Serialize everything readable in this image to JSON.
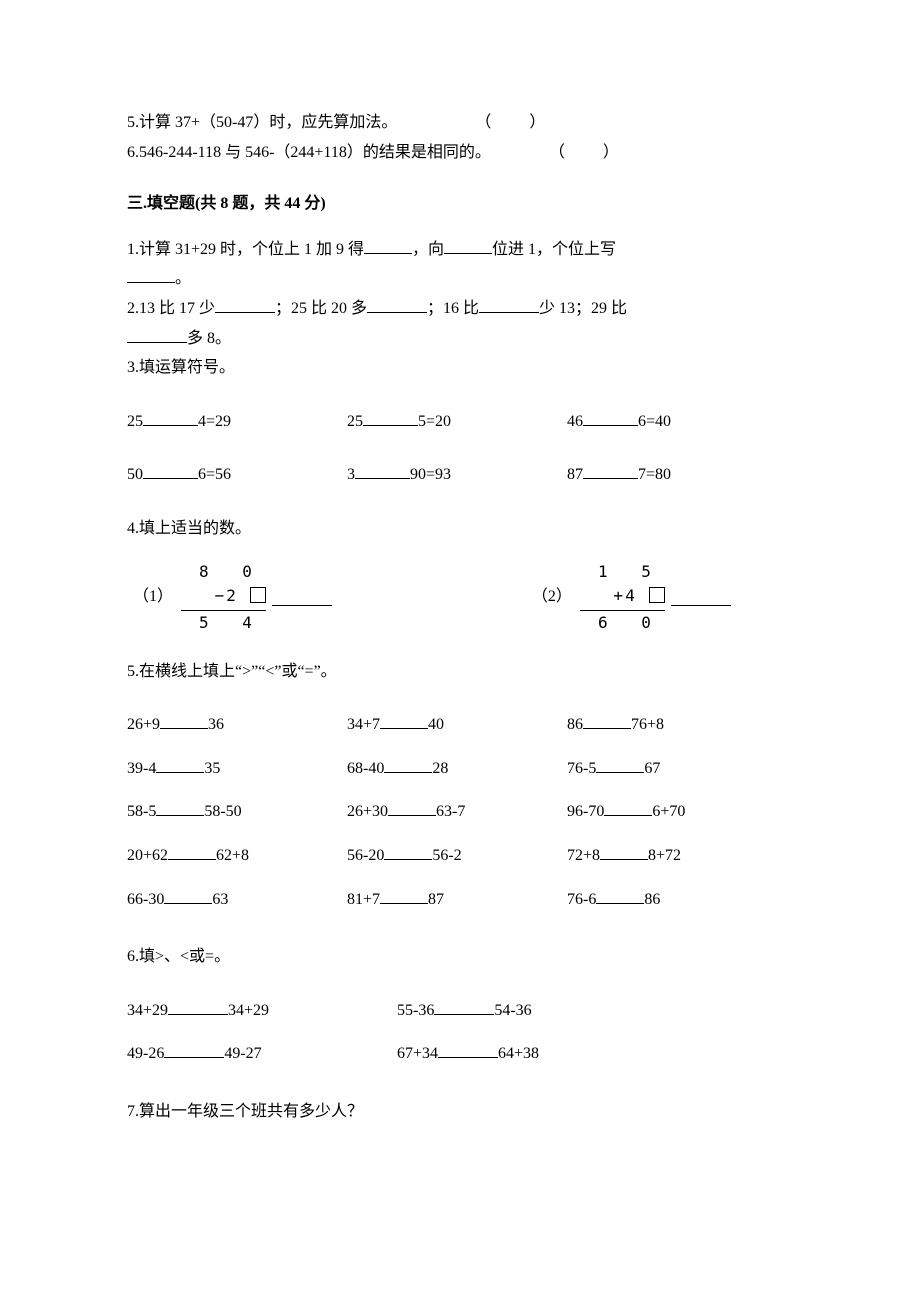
{
  "tf": {
    "q5": "5.计算 37+（50-47）时，应先算加法。",
    "q5_paren": "（　　）",
    "q6": "6.546-244-118 与 546-（244+118）的结果是相同的。",
    "q6_paren": "（　　）"
  },
  "section3_heading": "三.填空题(共 8 题，共 44 分)",
  "q1": {
    "a": "1.计算 31+29 时，个位上 1 加 9 得",
    "b": "，向",
    "c": "位进 1，个位上写",
    "d": "。"
  },
  "q2": {
    "a": "2.13 比 17 少",
    "b": "；25 比 20 多",
    "c": "；16 比",
    "d": "少 13；29 比",
    "e": "多 8。"
  },
  "q3_title": "3.填运算符号。",
  "q3_rows": [
    [
      "25",
      "4=29",
      "25",
      "5=20",
      "46",
      "6=40"
    ],
    [
      "50",
      "6=56",
      "3",
      "90=93",
      "87",
      "7=80"
    ]
  ],
  "q4_title": "4.填上适当的数。",
  "q4": {
    "p1_label": "（1）",
    "p1_top": "8  0",
    "p1_op": "−",
    "p1_mid_digit": "2",
    "p1_bot": "5  4",
    "p2_label": "（2）",
    "p2_top": "1  5",
    "p2_op": "+",
    "p2_mid_digit": "4",
    "p2_bot": "6  0"
  },
  "q5_title": "5.在横线上填上“>”“<”或“=”。",
  "q5_rows": [
    [
      "26+9",
      "36",
      "34+7",
      "40",
      "86",
      "76+8"
    ],
    [
      "39-4",
      "35",
      "68-40",
      "28",
      "76-5",
      "67"
    ],
    [
      "58-5",
      "58-50",
      "26+30",
      "63-7",
      "96-70",
      "6+70"
    ],
    [
      "20+62",
      "62+8",
      "56-20",
      "56-2",
      "72+8",
      "8+72"
    ],
    [
      "66-30",
      "63",
      "81+7",
      "87",
      "76-6",
      "86"
    ]
  ],
  "q6_title": "6.填>、<或=。",
  "q6_rows": [
    [
      "34+29",
      "34+29",
      "55-36",
      "54-36"
    ],
    [
      "49-26",
      "49-27",
      "67+34",
      "64+38"
    ]
  ],
  "q7_title": "7.算出一年级三个班共有多少人？"
}
